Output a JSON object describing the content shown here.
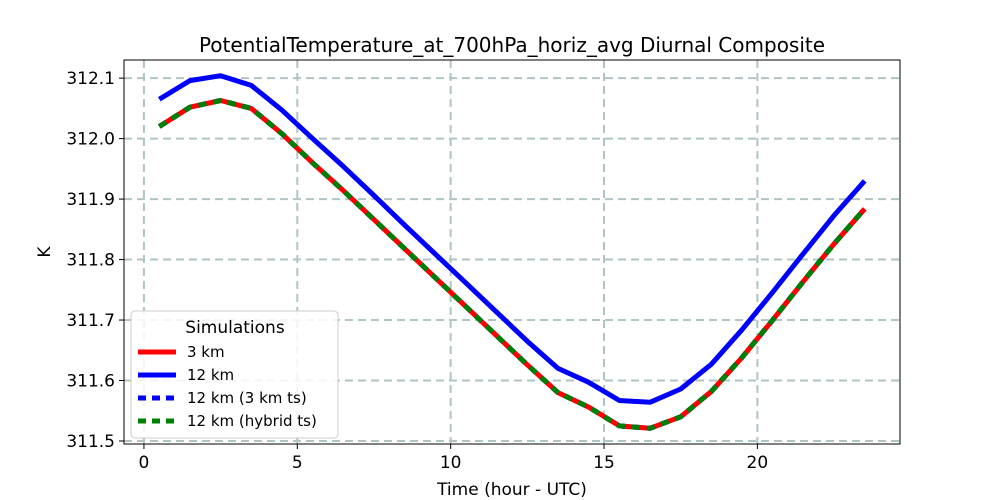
{
  "chart_data": {
    "type": "line",
    "title": "PotentialTemperature_at_700hPa_horiz_avg Diurnal Composite",
    "xlabel": "Time (hour - UTC)",
    "ylabel": "K",
    "xlim": [
      -0.65,
      24.65
    ],
    "ylim": [
      311.495,
      312.13
    ],
    "xticks": [
      0,
      5,
      10,
      15,
      20
    ],
    "yticks": [
      311.5,
      311.6,
      311.7,
      311.8,
      311.9,
      312.0,
      312.1
    ],
    "ytick_labels": [
      "311.5",
      "311.6",
      "311.7",
      "311.8",
      "311.9",
      "312.0",
      "312.1"
    ],
    "grid": true,
    "legend_title": "Simulations",
    "legend_location": "lower-left",
    "x": [
      0.5,
      1.5,
      2.5,
      3.5,
      4.5,
      5.5,
      6.5,
      7.5,
      8.5,
      9.5,
      10.5,
      11.5,
      12.5,
      13.5,
      14.5,
      15.5,
      16.5,
      17.5,
      18.5,
      19.5,
      20.5,
      21.5,
      22.5,
      23.5
    ],
    "series": [
      {
        "name": "3 km",
        "color": "#ff0000",
        "style": "solid",
        "values": [
          312.02,
          312.052,
          312.063,
          312.05,
          312.008,
          311.96,
          311.914,
          311.866,
          311.818,
          311.77,
          311.722,
          311.674,
          311.626,
          311.58,
          311.556,
          311.525,
          311.521,
          311.54,
          311.582,
          311.638,
          311.7,
          311.764,
          311.826,
          311.884
        ]
      },
      {
        "name": "12 km",
        "color": "#0000ff",
        "style": "solid",
        "values": [
          312.065,
          312.096,
          312.104,
          312.088,
          312.047,
          312.0,
          311.954,
          311.906,
          311.857,
          311.809,
          311.761,
          311.713,
          311.665,
          311.62,
          311.597,
          311.567,
          311.564,
          311.586,
          311.627,
          311.684,
          311.746,
          311.81,
          311.873,
          311.93
        ]
      },
      {
        "name": "12 km (3 km ts)",
        "color": "#0000ff",
        "style": "dashed",
        "values": [
          312.02,
          312.052,
          312.063,
          312.05,
          312.008,
          311.96,
          311.914,
          311.866,
          311.818,
          311.77,
          311.722,
          311.674,
          311.626,
          311.58,
          311.556,
          311.525,
          311.521,
          311.54,
          311.582,
          311.638,
          311.7,
          311.764,
          311.826,
          311.884
        ]
      },
      {
        "name": "12 km (hybrid ts)",
        "color": "#008000",
        "style": "dashed",
        "values": [
          312.02,
          312.052,
          312.063,
          312.05,
          312.008,
          311.96,
          311.914,
          311.866,
          311.818,
          311.77,
          311.722,
          311.674,
          311.626,
          311.58,
          311.556,
          311.525,
          311.521,
          311.54,
          311.582,
          311.638,
          311.7,
          311.764,
          311.826,
          311.884
        ]
      }
    ]
  }
}
